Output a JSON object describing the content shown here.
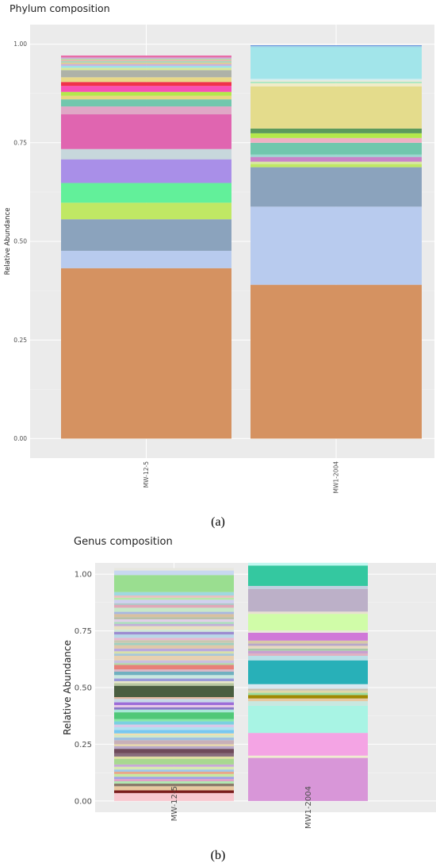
{
  "chart_data": [
    {
      "id": "a",
      "type": "bar",
      "stacked": true,
      "title": "Phylum composition",
      "ylabel": "Relative Abundance",
      "xlabel": "",
      "ylim": [
        0,
        1
      ],
      "yticks": [
        "0.00",
        "0.25",
        "0.50",
        "0.75",
        "1.00"
      ],
      "categories": [
        "MW-12-5",
        "MW1-2004"
      ],
      "grid": true,
      "background": "#ebebeb",
      "caption": "(a)",
      "stacks": [
        [
          {
            "value": 0.432,
            "color": "#d59261"
          },
          {
            "value": 0.044,
            "color": "#b8cbee"
          },
          {
            "value": 0.08,
            "color": "#8ba3bd"
          },
          {
            "value": 0.042,
            "color": "#c0e864"
          },
          {
            "value": 0.05,
            "color": "#62f09a"
          },
          {
            "value": 0.06,
            "color": "#a98fe8"
          },
          {
            "value": 0.026,
            "color": "#c7d7dc"
          },
          {
            "value": 0.088,
            "color": "#e065b0"
          },
          {
            "value": 0.02,
            "color": "#e0a7c6"
          },
          {
            "value": 0.018,
            "color": "#71c7ad"
          },
          {
            "value": 0.009,
            "color": "#e8d680"
          },
          {
            "value": 0.01,
            "color": "#b4e84c"
          },
          {
            "value": 0.015,
            "color": "#f84fb4"
          },
          {
            "value": 0.01,
            "color": "#f0324a"
          },
          {
            "value": 0.012,
            "color": "#e8d888"
          },
          {
            "value": 0.018,
            "color": "#aeb2a8"
          },
          {
            "value": 0.006,
            "color": "#d8e89c"
          },
          {
            "value": 0.005,
            "color": "#9ee0e8"
          },
          {
            "value": 0.004,
            "color": "#c4b0e0"
          },
          {
            "value": 0.004,
            "color": "#e0c69a"
          },
          {
            "value": 0.004,
            "color": "#a8d8b8"
          },
          {
            "value": 0.003,
            "color": "#e8b0b0"
          },
          {
            "value": 0.003,
            "color": "#b4e0a4"
          },
          {
            "value": 0.003,
            "color": "#d0a8e0"
          },
          {
            "value": 0.003,
            "color": "#e47aa4"
          },
          {
            "value": 0.002,
            "color": "#ec5aa8"
          }
        ],
        [
          {
            "value": 0.39,
            "color": "#d59261"
          },
          {
            "value": 0.198,
            "color": "#b8cbee"
          },
          {
            "value": 0.1,
            "color": "#8ba3bd"
          },
          {
            "value": 0.008,
            "color": "#c0e864"
          },
          {
            "value": 0.006,
            "color": "#d8e8a0"
          },
          {
            "value": 0.012,
            "color": "#c884c8"
          },
          {
            "value": 0.006,
            "color": "#9ad8d0"
          },
          {
            "value": 0.03,
            "color": "#71c7ad"
          },
          {
            "value": 0.012,
            "color": "#f0b0c4"
          },
          {
            "value": 0.012,
            "color": "#b4e84c"
          },
          {
            "value": 0.012,
            "color": "#5c9a5c"
          },
          {
            "value": 0.107,
            "color": "#e4dc8c"
          },
          {
            "value": 0.008,
            "color": "#f0ecc8"
          },
          {
            "value": 0.004,
            "color": "#a8e8c0"
          },
          {
            "value": 0.003,
            "color": "#f0e8d8"
          },
          {
            "value": 0.004,
            "color": "#d0eef0"
          },
          {
            "value": 0.08,
            "color": "#a2e5ea"
          },
          {
            "value": 0.003,
            "color": "#9ed4e8"
          },
          {
            "value": 0.002,
            "color": "#6090e0"
          }
        ]
      ]
    },
    {
      "id": "b",
      "type": "bar",
      "stacked": true,
      "title": "Genus composition",
      "ylabel": "Relative Abundance",
      "xlabel": "",
      "ylim": [
        0,
        1
      ],
      "yticks": [
        "0.00",
        "0.25",
        "0.50",
        "0.75",
        "1.00"
      ],
      "categories": [
        "MW-12-5",
        "MW1-2004"
      ],
      "grid": true,
      "background": "#ebebeb",
      "caption": "(b)",
      "stacks": [
        [
          {
            "value": 0.035,
            "color": "#f8c8d0"
          },
          {
            "value": 0.012,
            "color": "#7a1c1c"
          },
          {
            "value": 0.018,
            "color": "#e8c8a0"
          },
          {
            "value": 0.012,
            "color": "#8a7a6a"
          },
          {
            "value": 0.01,
            "color": "#b0e8b0"
          },
          {
            "value": 0.01,
            "color": "#e0a0c8"
          },
          {
            "value": 0.01,
            "color": "#a0a0e8"
          },
          {
            "value": 0.012,
            "color": "#c8e8a0"
          },
          {
            "value": 0.01,
            "color": "#e8a888"
          },
          {
            "value": 0.01,
            "color": "#a0c8e8"
          },
          {
            "value": 0.012,
            "color": "#d8e8b0"
          },
          {
            "value": 0.01,
            "color": "#c8a8d8"
          },
          {
            "value": 0.025,
            "color": "#a8d890"
          },
          {
            "value": 0.01,
            "color": "#e0e0a0"
          },
          {
            "value": 0.014,
            "color": "#886c7c"
          },
          {
            "value": 0.02,
            "color": "#6e4a5a"
          },
          {
            "value": 0.012,
            "color": "#b8a8c8"
          },
          {
            "value": 0.008,
            "color": "#e8d8a8"
          },
          {
            "value": 0.018,
            "color": "#c8b0b8"
          },
          {
            "value": 0.012,
            "color": "#a0c0e0"
          },
          {
            "value": 0.01,
            "color": "#d0e8c8"
          },
          {
            "value": 0.008,
            "color": "#f0e0b0"
          },
          {
            "value": 0.015,
            "color": "#78c8f0"
          },
          {
            "value": 0.012,
            "color": "#b0e0f0"
          },
          {
            "value": 0.012,
            "color": "#d8c8e8"
          },
          {
            "value": 0.014,
            "color": "#7ad0e0"
          },
          {
            "value": 0.01,
            "color": "#88e8a8"
          },
          {
            "value": 0.03,
            "color": "#50c878"
          },
          {
            "value": 0.012,
            "color": "#a8e8d8"
          },
          {
            "value": 0.01,
            "color": "#8878c8"
          },
          {
            "value": 0.01,
            "color": "#e8c8e8"
          },
          {
            "value": 0.012,
            "color": "#9c6cd8"
          },
          {
            "value": 0.015,
            "color": "#c8d8e8"
          },
          {
            "value": 0.008,
            "color": "#e0b8a0"
          },
          {
            "value": 0.05,
            "color": "#4a5e40"
          },
          {
            "value": 0.012,
            "color": "#b8c8a0"
          },
          {
            "value": 0.008,
            "color": "#e8e8c8"
          },
          {
            "value": 0.012,
            "color": "#9a9ad8"
          },
          {
            "value": 0.015,
            "color": "#c8e8e0"
          },
          {
            "value": 0.015,
            "color": "#70b0c0"
          },
          {
            "value": 0.01,
            "color": "#d8b8c8"
          },
          {
            "value": 0.02,
            "color": "#e88078"
          },
          {
            "value": 0.008,
            "color": "#b0d8a8"
          },
          {
            "value": 0.012,
            "color": "#c8c0e0"
          },
          {
            "value": 0.02,
            "color": "#e8d0b0"
          },
          {
            "value": 0.01,
            "color": "#a8c8d8"
          },
          {
            "value": 0.01,
            "color": "#d8e0a8"
          },
          {
            "value": 0.012,
            "color": "#b8a8e0"
          },
          {
            "value": 0.015,
            "color": "#e0c8a8"
          },
          {
            "value": 0.01,
            "color": "#a0d0c0"
          },
          {
            "value": 0.012,
            "color": "#c8c8b0"
          },
          {
            "value": 0.01,
            "color": "#e8b8d0"
          },
          {
            "value": 0.015,
            "color": "#b8d8e8"
          },
          {
            "value": 0.012,
            "color": "#9c8cd0"
          },
          {
            "value": 0.01,
            "color": "#d0e8d8"
          },
          {
            "value": 0.015,
            "color": "#e8e0c0"
          },
          {
            "value": 0.01,
            "color": "#c0b0d8"
          },
          {
            "value": 0.008,
            "color": "#a8e0b8"
          },
          {
            "value": 0.012,
            "color": "#e0d0e8"
          },
          {
            "value": 0.01,
            "color": "#b8c0a8"
          },
          {
            "value": 0.013,
            "color": "#d8c0a0"
          },
          {
            "value": 0.01,
            "color": "#a8b8e0"
          },
          {
            "value": 0.018,
            "color": "#c8e8c8"
          },
          {
            "value": 0.012,
            "color": "#e0a8b8"
          },
          {
            "value": 0.008,
            "color": "#b0c8c8"
          },
          {
            "value": 0.015,
            "color": "#d0d0f0"
          },
          {
            "value": 0.009,
            "color": "#b8e8a8"
          },
          {
            "value": 0.01,
            "color": "#e8c0c0"
          },
          {
            "value": 0.015,
            "color": "#a0d8e0"
          },
          {
            "value": 0.075,
            "color": "#9ade90"
          },
          {
            "value": 0.02,
            "color": "#c8d8f0"
          },
          {
            "value": 0.011,
            "color": "#e8e8e0"
          }
        ],
        [
          {
            "value": 0.19,
            "color": "#d896d8"
          },
          {
            "value": 0.01,
            "color": "#f0ecd0"
          },
          {
            "value": 0.1,
            "color": "#f4a4e4"
          },
          {
            "value": 0.12,
            "color": "#a8f4e4"
          },
          {
            "value": 0.02,
            "color": "#c8e8e0"
          },
          {
            "value": 0.012,
            "color": "#e8c8a0"
          },
          {
            "value": 0.015,
            "color": "#a08800"
          },
          {
            "value": 0.01,
            "color": "#9cdca0"
          },
          {
            "value": 0.01,
            "color": "#e0d8a8"
          },
          {
            "value": 0.008,
            "color": "#c8c0b0"
          },
          {
            "value": 0.02,
            "color": "#d8e8f0"
          },
          {
            "value": 0.105,
            "color": "#28b0b8"
          },
          {
            "value": 0.02,
            "color": "#b8e0e8"
          },
          {
            "value": 0.01,
            "color": "#e0b0c0"
          },
          {
            "value": 0.012,
            "color": "#c8a0d0"
          },
          {
            "value": 0.01,
            "color": "#a8c8a8"
          },
          {
            "value": 0.012,
            "color": "#e8d8c0"
          },
          {
            "value": 0.01,
            "color": "#b8a8c8"
          },
          {
            "value": 0.013,
            "color": "#d8c8a8"
          },
          {
            "value": 0.035,
            "color": "#d078d8"
          },
          {
            "value": 0.01,
            "color": "#e8e8d8"
          },
          {
            "value": 0.073,
            "color": "#d0fca8"
          },
          {
            "value": 0.01,
            "color": "#e8e0d0"
          },
          {
            "value": 0.1,
            "color": "#bcb0c8"
          },
          {
            "value": 0.013,
            "color": "#c0d0e0"
          },
          {
            "value": 0.09,
            "color": "#34c8a0"
          },
          {
            "value": 0.012,
            "color": "#c0f8f0"
          }
        ]
      ]
    }
  ]
}
